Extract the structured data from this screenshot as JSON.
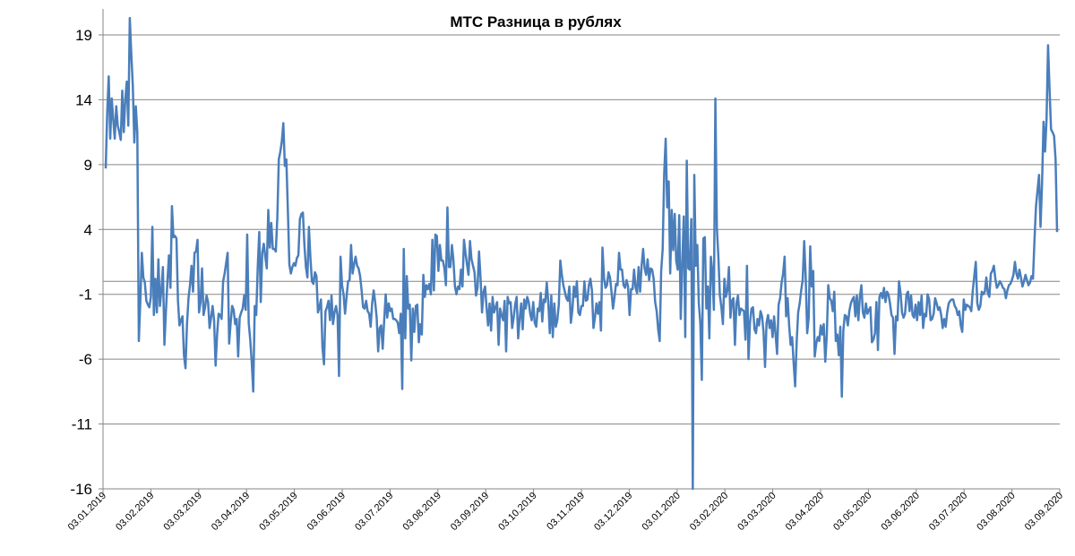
{
  "chart_data": {
    "type": "line",
    "title": "МТС Разница в рублях",
    "xlabel": "",
    "ylabel": "",
    "ylim": [
      -16,
      21
    ],
    "yticks": [
      19,
      14,
      9,
      4,
      -1,
      -6,
      -11,
      -16
    ],
    "ytick_labels": [
      "19",
      "14",
      "9",
      "4",
      "-1",
      "-6",
      "-11",
      "-16"
    ],
    "xticks": [
      "03.01.2019",
      "03.02.2019",
      "03.03.2019",
      "03.04.2019",
      "03.05.2019",
      "03.06.2019",
      "03.07.2019",
      "03.08.2019",
      "03.09.2019",
      "03.10.2019",
      "03.11.2019",
      "03.12.2019",
      "03.01.2020",
      "03.02.2020",
      "03.03.2020",
      "03.04.2020",
      "03.05.2020",
      "03.06.2020",
      "03.07.2020",
      "03.08.2020",
      "03.09.2020"
    ],
    "grid": true,
    "legend": "none",
    "line_color": "#4a7ebb",
    "axis_color": "#868686",
    "series": [
      {
        "values": [
          8.7,
          13,
          15.8,
          11,
          14.1,
          12.5,
          11,
          13.5,
          12,
          11.5,
          10.9,
          14.7,
          11.5,
          14,
          15.4,
          12,
          20.3,
          17.5,
          15.1,
          10.7,
          13.5,
          11.5,
          -4.6,
          -1.5,
          2.2,
          0.3,
          -0.1,
          -1.5,
          -1.8,
          -2,
          -1.2,
          4.2,
          -2.6,
          0.2,
          -2.4,
          1.7,
          -1.9,
          -0.7,
          1.1,
          -4.9,
          -2.3,
          0,
          2.0,
          -0.5,
          5.8,
          3.4,
          3.5,
          3.3,
          -1.5,
          -3.4,
          -3,
          -2.7,
          -5.7,
          -6.7,
          -3.3,
          -1.3,
          -0.3,
          1.2,
          -0.8,
          2.2,
          2.3,
          3.2,
          -2.4,
          -1.6,
          1.0,
          -2.6,
          -2.0,
          -1.1,
          -1.6,
          -3.6,
          -2.8,
          -1.9,
          -3.0,
          -6.5,
          -4.1,
          -2.5,
          -2.6,
          -2.9,
          0,
          0.6,
          1.4,
          2.2,
          -4.8,
          -3.2,
          -1.9,
          -2.2,
          -3.3,
          -2.9,
          -5.8,
          -2.8,
          -2.4,
          -2.1,
          -1.1,
          -2.2,
          3.6,
          -3.2,
          -4.5,
          -6.2,
          -8.5,
          -1.9,
          -2.6,
          1.1,
          3.8,
          -1.6,
          2.2,
          2.9,
          1.9,
          1.0,
          5.5,
          2.6,
          4.5,
          2.5,
          2.5,
          2.3,
          4.9,
          9.4,
          10.0,
          10.8,
          12.2,
          8.9,
          9.4,
          5.5,
          1.3,
          0.6,
          1.1,
          1.4,
          1.2,
          1.8,
          2.0,
          4.8,
          5.2,
          5.3,
          2.8,
          1.1,
          0.3,
          4.2,
          1.8,
          0.0,
          -0.2,
          0.7,
          0.4,
          -2.4,
          -2.0,
          -1.4,
          -5.1,
          -6.4,
          -2.3,
          -2.0,
          -1.5,
          -3.0,
          -1.1,
          -3.3,
          -2.4,
          -1.9,
          -2.6,
          -7.3,
          1.9,
          -0.3,
          -1.0,
          -2.5,
          -1.2,
          0,
          0.1,
          2.8,
          0.6,
          1.3,
          1.9,
          1.2,
          1.0,
          0.4,
          -0.7,
          -2.0,
          -2.1,
          -1.5,
          -2.3,
          -2.5,
          -3.5,
          -1.7,
          -0.7,
          -1.6,
          -2.8,
          -5.4,
          -3.6,
          -3.4,
          -5.2,
          -3.0,
          -1.0,
          -2.8,
          -1.7,
          -2.3,
          -2.1,
          -2.9,
          -2.9,
          -3.0,
          -3.2,
          -4.0,
          -2.5,
          -8.3,
          2.5,
          -4.4,
          0.4,
          -2.1,
          -1.8,
          -6.1,
          -2.1,
          -3.9,
          -1.9,
          -1.8,
          -4.7,
          -3.3,
          -4.1,
          0.5,
          -1.2,
          -0.3,
          -0.6,
          -0.2,
          -1.0,
          3.2,
          -0.7,
          3.6,
          3.5,
          0.8,
          2.8,
          1.6,
          1.6,
          1.0,
          -0.3,
          5.7,
          1.1,
          1.1,
          2.8,
          1.6,
          -0.4,
          -1.0,
          -0.4,
          -0.6,
          0.9,
          -0.4,
          3.2,
          2.2,
          1.3,
          0.5,
          3.1,
          1.7,
          1.2,
          0.7,
          -1.1,
          -0.5,
          2.3,
          0.3,
          -2.4,
          -0.8,
          -0.4,
          -2.0,
          -3.4,
          -1.7,
          -3.8,
          -1.2,
          -2.4,
          -2.0,
          -1.6,
          -4.9,
          -2.1,
          -2.6,
          -3.0,
          -1.5,
          -5.4,
          -1.2,
          -1.7,
          -1.6,
          -3.6,
          -2.8,
          -1.8,
          -1.2,
          -4.4,
          -2.9,
          -1.7,
          -3.7,
          -1.4,
          -2.1,
          -1.2,
          -1.6,
          -2.5,
          -3.0,
          -1.6,
          -3.2,
          -3.5,
          -2.1,
          -2.3,
          -0.9,
          -3.1,
          -1.4,
          -1.6,
          -0.1,
          -1.6,
          -4.0,
          -1.1,
          -4.3,
          -1.7,
          -3.5,
          -3.0,
          -1.8,
          1.6,
          0.5,
          -0.3,
          -0.8,
          -1.3,
          -1.5,
          -0.4,
          -3.2,
          -2.2,
          -0.4,
          -1.2,
          0,
          -2.4,
          -2.6,
          -1.9,
          -1.9,
          0.0,
          -1.5,
          -1.4,
          -0.3,
          0.2,
          -0.7,
          -3.6,
          -2.8,
          -1.7,
          -2.5,
          -1.6,
          -3.8,
          2.6,
          0.3,
          -0.5,
          -0.3,
          0.7,
          0.3,
          -0.8,
          -2.1,
          -1.2,
          -0.2,
          -0.3,
          2.2,
          0.9,
          0.9,
          -0.3,
          -0.5,
          0.1,
          -0.4,
          -2.6,
          -0.6,
          -0.6,
          0.9,
          -0.5,
          -0.9,
          1.1,
          -0.8,
          1.2,
          2.5,
          1.0,
          0.5,
          1.7,
          0.1,
          1.0,
          0.9,
          0.2,
          -1.6,
          -2.3,
          -3.7,
          -4.6,
          0.8,
          2.5,
          8.3,
          11.0,
          5.7,
          7.7,
          0.6,
          5.5,
          2.4,
          5.2,
          1.6,
          0.9,
          5.1,
          -2.9,
          1.4,
          5.0,
          -4.3,
          9.3,
          1.0,
          0.9,
          4.8,
          -16,
          8.2,
          1.2,
          2.8,
          -1.7,
          -3.2,
          -7.6,
          3.3,
          3.4,
          -2.1,
          -0.4,
          -4.4,
          1.9,
          0.7,
          -2.2,
          14.1,
          4.1,
          1.9,
          -1.1,
          -2.0,
          -3.3,
          0.2,
          -1.2,
          -0.7,
          1.1,
          -2.8,
          -1.5,
          -1.3,
          -4.9,
          -1.7,
          -1.1,
          -2.6,
          -2.1,
          -2.2,
          -2.3,
          -4.5,
          1.2,
          -6.0,
          -3.2,
          -2.1,
          -2.0,
          -3.7,
          -4.0,
          -2.9,
          -3.4,
          -2.3,
          -2.7,
          -3.9,
          -6.6,
          -3.2,
          -2.6,
          -3.6,
          -3.0,
          -4.3,
          -2.7,
          -4.1,
          -5.6,
          -1.8,
          -1.3,
          -0.1,
          0.6,
          1.9,
          -2.7,
          -1.3,
          -3.4,
          -4.9,
          -4.3,
          -6.3,
          -8.1,
          -4.7,
          -2.4,
          -1.7,
          -0.7,
          0.1,
          3.1,
          0.3,
          -4.0,
          -2.8,
          2.7,
          -0.4,
          0.8,
          -5.8,
          -4.8,
          -4.3,
          -4.6,
          -3.4,
          -4.1,
          -3.3,
          -6.2,
          -4.2,
          -0.3,
          -1.3,
          -1.5,
          -2.3,
          -0.8,
          -4.6,
          -4.1,
          -5.7,
          -3.5,
          -8.9,
          -3.8,
          -2.6,
          -2.7,
          -3.4,
          -2.3,
          -1.7,
          -1.4,
          -1.2,
          -2.7,
          -1.1,
          -3.0,
          -1.2,
          -0.3,
          -2.4,
          -2.8,
          -1.7,
          -2.5,
          -2.2,
          -2.0,
          -4.7,
          -4.5,
          -4.0,
          -1.6,
          -5.3,
          -1.2,
          -0.9,
          -1.3,
          -0.5,
          -1.6,
          -0.8,
          -1.0,
          -1.7,
          -2.6,
          -2.8,
          -5.6,
          -2.7,
          -3.0,
          0.0,
          -0.9,
          -2.4,
          -2.8,
          -2.5,
          -1.0,
          -0.8,
          -2.3,
          -1.1,
          -2.6,
          -2.8,
          -1.8,
          -3.0,
          -1.6,
          -2.6,
          -1.1,
          -3.6,
          -2.5,
          -2.7,
          -1.0,
          -1.4,
          -3.0,
          -2.9,
          -2.5,
          -1.3,
          -1.7,
          -2.2,
          -2.0,
          -2.6,
          -3.6,
          -2.9,
          -3.5,
          -2.4,
          -1.7,
          -1.5,
          -1.4,
          -1.4,
          -1.9,
          -2.1,
          -2.6,
          -2.3,
          -3.4,
          -3.9,
          -1.4,
          -2.2,
          -1.8,
          -1.9,
          -2.0,
          -2.3,
          -0.7,
          0.4,
          1.5,
          -1.7,
          -2.2,
          -1.9,
          -0.8,
          -1.0,
          -0.8,
          0.3,
          -0.9,
          -1.2,
          0.6,
          0.8,
          1.2,
          0.2,
          -0.5,
          -0.3,
          0.0,
          -0.2,
          -0.5,
          -0.6,
          -1.3,
          -0.7,
          -0.3,
          -0.2,
          0.1,
          0.5,
          1.5,
          0.6,
          0.2,
          0.9,
          0.3,
          -0.4,
          0.0,
          0.5,
          0.1,
          -0.3,
          -0.1,
          0.4,
          0.2,
          3.2,
          5.8,
          7.0,
          8.2,
          4.2,
          7.5,
          12.3,
          10.0,
          12.5,
          18.2,
          14.8,
          11.7,
          11.5,
          11.2,
          9.4,
          3.8
        ]
      }
    ]
  }
}
